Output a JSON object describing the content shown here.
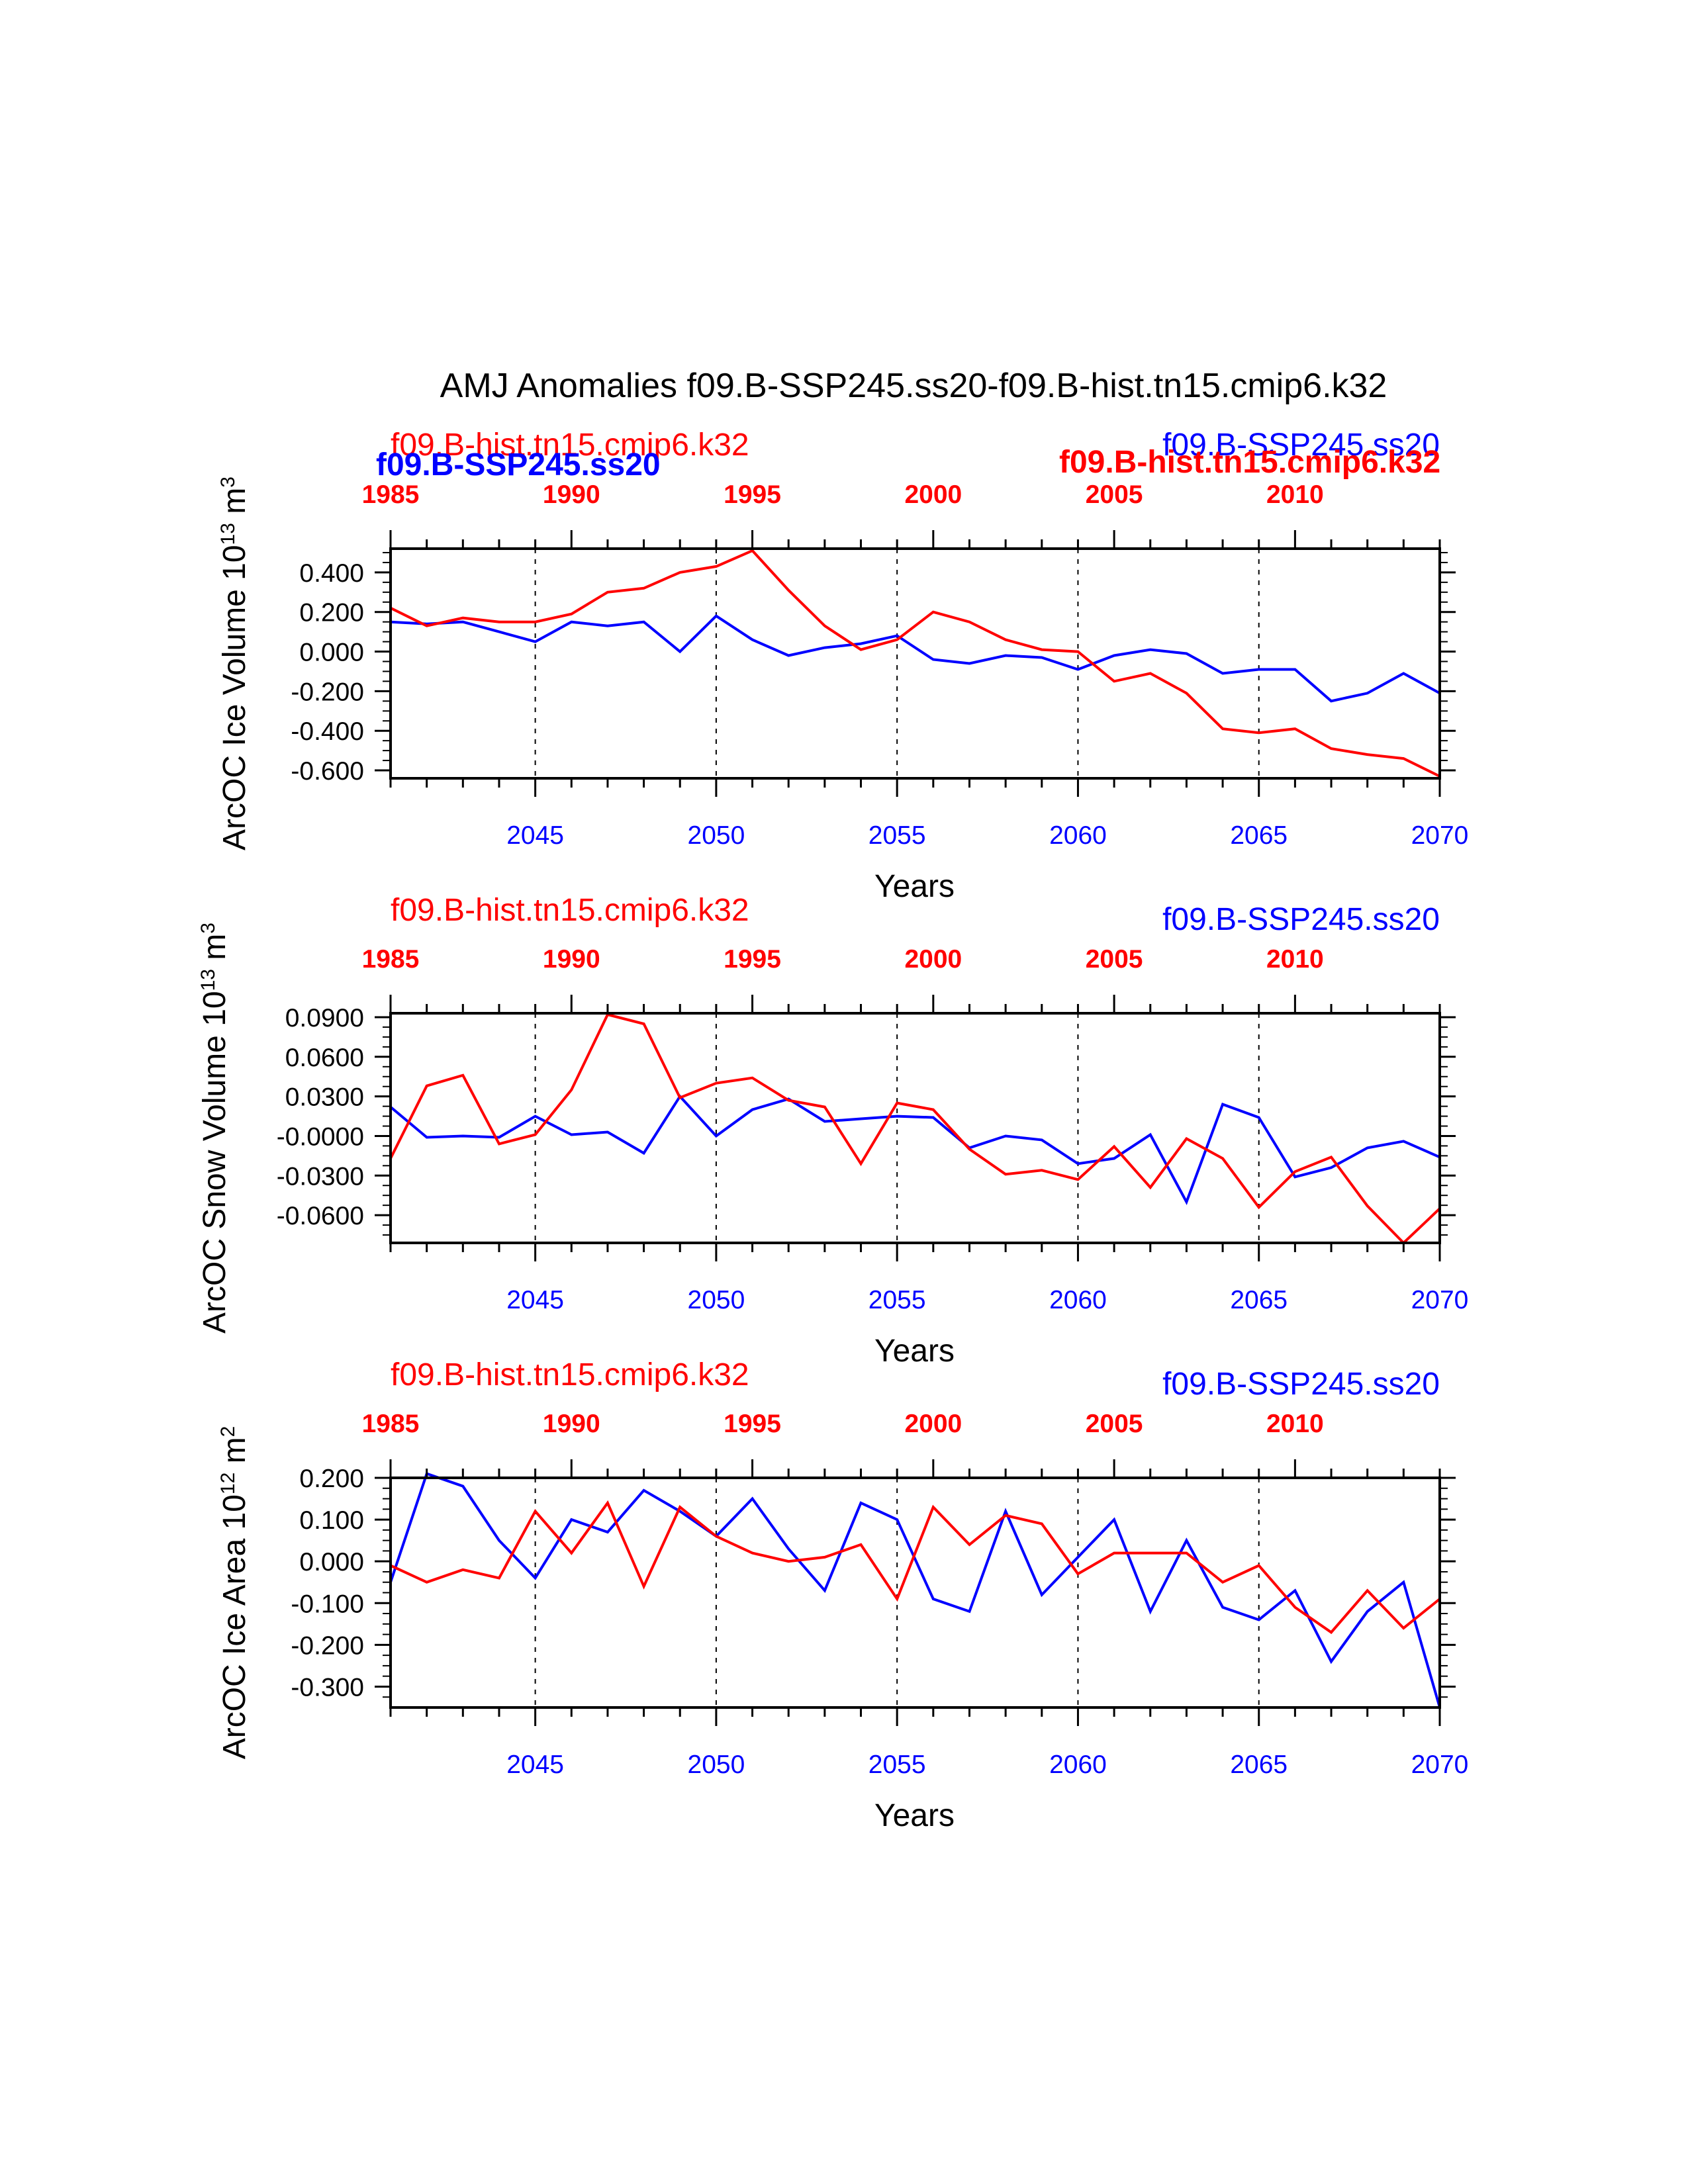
{
  "title": "AMJ Anomalies f09.B-SSP245.ss20-f09.B-hist.tn15.cmip6.k32",
  "colors": {
    "ssp": "#0000ff",
    "hist": "#ff0000",
    "axis": "#000000"
  },
  "chart_data": [
    {
      "type": "line",
      "ylabel": "ArcOC Ice Volume 10",
      "ylabel_exp": "13",
      "ylabel_unit": " m",
      "ylabel_unit_exp": "3",
      "xlabel": "Years",
      "ylim": [
        -0.64,
        0.52
      ],
      "yticks": [
        0.4,
        0.2,
        0.0,
        -0.2,
        -0.4,
        -0.6
      ],
      "ytick_labels": [
        "0.400",
        "0.200",
        "0.000",
        "-0.200",
        "-0.400",
        "-0.600"
      ],
      "bottom_axis": {
        "range": [
          2041,
          2070
        ],
        "ticks": [
          2045,
          2050,
          2055,
          2060,
          2065,
          2070
        ],
        "labels": [
          "2045",
          "2050",
          "2055",
          "2060",
          "2065",
          "2070"
        ]
      },
      "top_axis": {
        "range": [
          1985,
          2014
        ],
        "ticks": [
          1985,
          1990,
          1995,
          2000,
          2005,
          2010
        ],
        "labels": [
          "1985",
          "1990",
          "1995",
          "2000",
          "2005",
          "2010"
        ]
      },
      "red_label": "f09.B-hist.tn15.cmip6.k32",
      "blue_label": "f09.B-SSP245.ss20",
      "extra_labels": [
        "f09.B-SSP245.ss20",
        "f09.B-hist.tn15.cmip6.k32"
      ],
      "series": [
        {
          "name": "f09.B-SSP245.ss20",
          "axis": "bottom",
          "color": "#0000ff",
          "x": [
            2041,
            2042,
            2043,
            2044,
            2045,
            2046,
            2047,
            2048,
            2049,
            2050,
            2051,
            2052,
            2053,
            2054,
            2055,
            2056,
            2057,
            2058,
            2059,
            2060,
            2061,
            2062,
            2063,
            2064,
            2065,
            2066,
            2067,
            2068,
            2069,
            2070
          ],
          "y": [
            0.15,
            0.14,
            0.15,
            0.1,
            0.05,
            0.15,
            0.13,
            0.15,
            0.0,
            0.18,
            0.06,
            -0.02,
            0.02,
            0.04,
            0.08,
            -0.04,
            -0.06,
            -0.02,
            -0.03,
            -0.09,
            -0.02,
            0.01,
            -0.01,
            -0.11,
            -0.09,
            -0.09,
            -0.25,
            -0.21,
            -0.11,
            -0.21
          ]
        },
        {
          "name": "f09.B-hist.tn15.cmip6.k32",
          "axis": "top",
          "color": "#ff0000",
          "x": [
            1985,
            1986,
            1987,
            1988,
            1989,
            1990,
            1991,
            1992,
            1993,
            1994,
            1995,
            1996,
            1997,
            1998,
            1999,
            2000,
            2001,
            2002,
            2003,
            2004,
            2005,
            2006,
            2007,
            2008,
            2009,
            2010,
            2011,
            2012,
            2013,
            2014
          ],
          "y": [
            0.22,
            0.13,
            0.17,
            0.15,
            0.15,
            0.19,
            0.3,
            0.32,
            0.4,
            0.43,
            0.51,
            0.31,
            0.13,
            0.01,
            0.06,
            0.2,
            0.15,
            0.06,
            0.01,
            0.0,
            -0.15,
            -0.11,
            -0.21,
            -0.39,
            -0.41,
            -0.39,
            -0.49,
            -0.52,
            -0.54,
            -0.63
          ]
        }
      ]
    },
    {
      "type": "line",
      "ylabel": "ArcOC Snow Volume 10",
      "ylabel_exp": "13",
      "ylabel_unit": " m",
      "ylabel_unit_exp": "3",
      "xlabel": "Years",
      "ylim": [
        -0.081,
        0.093
      ],
      "yticks": [
        0.09,
        0.06,
        0.03,
        0.0,
        -0.03,
        -0.06
      ],
      "ytick_labels": [
        "0.0900",
        "0.0600",
        "0.0300",
        "-0.0000",
        "-0.0300",
        "-0.0600"
      ],
      "bottom_axis": {
        "range": [
          2041,
          2070
        ],
        "ticks": [
          2045,
          2050,
          2055,
          2060,
          2065,
          2070
        ],
        "labels": [
          "2045",
          "2050",
          "2055",
          "2060",
          "2065",
          "2070"
        ]
      },
      "top_axis": {
        "range": [
          1985,
          2014
        ],
        "ticks": [
          1985,
          1990,
          1995,
          2000,
          2005,
          2010
        ],
        "labels": [
          "1985",
          "1990",
          "1995",
          "2000",
          "2005",
          "2010"
        ]
      },
      "red_label": "f09.B-hist.tn15.cmip6.k32",
      "blue_label": "f09.B-SSP245.ss20",
      "series": [
        {
          "name": "f09.B-SSP245.ss20",
          "axis": "bottom",
          "color": "#0000ff",
          "x": [
            2041,
            2042,
            2043,
            2044,
            2045,
            2046,
            2047,
            2048,
            2049,
            2050,
            2051,
            2052,
            2053,
            2054,
            2055,
            2056,
            2057,
            2058,
            2059,
            2060,
            2061,
            2062,
            2063,
            2064,
            2065,
            2066,
            2067,
            2068,
            2069,
            2070
          ],
          "y": [
            0.022,
            -0.001,
            0.0,
            -0.001,
            0.015,
            0.001,
            0.003,
            -0.013,
            0.03,
            0.0,
            0.02,
            0.028,
            0.011,
            0.013,
            0.015,
            0.014,
            -0.009,
            0.0,
            -0.003,
            -0.021,
            -0.017,
            0.001,
            -0.05,
            0.024,
            0.014,
            -0.031,
            -0.024,
            -0.009,
            -0.004,
            -0.016
          ]
        },
        {
          "name": "f09.B-hist.tn15.cmip6.k32",
          "axis": "top",
          "color": "#ff0000",
          "x": [
            1985,
            1986,
            1987,
            1988,
            1989,
            1990,
            1991,
            1992,
            1993,
            1994,
            1995,
            1996,
            1997,
            1998,
            1999,
            2000,
            2001,
            2002,
            2003,
            2004,
            2005,
            2006,
            2007,
            2008,
            2009,
            2010,
            2011,
            2012,
            2013,
            2014
          ],
          "y": [
            -0.017,
            0.038,
            0.046,
            -0.006,
            0.001,
            0.035,
            0.092,
            0.085,
            0.029,
            0.04,
            0.044,
            0.027,
            0.022,
            -0.021,
            0.025,
            0.02,
            -0.01,
            -0.029,
            -0.026,
            -0.033,
            -0.008,
            -0.039,
            -0.002,
            -0.017,
            -0.054,
            -0.027,
            -0.016,
            -0.053,
            -0.081,
            -0.055
          ]
        }
      ]
    },
    {
      "type": "line",
      "ylabel": "ArcOC Ice Area 10",
      "ylabel_exp": "12",
      "ylabel_unit": " m",
      "ylabel_unit_exp": "2",
      "xlabel": "Years",
      "ylim": [
        -0.35,
        0.2
      ],
      "yticks": [
        0.2,
        0.1,
        0.0,
        -0.1,
        -0.2,
        -0.3
      ],
      "ytick_labels": [
        "0.200",
        "0.100",
        "0.000",
        "-0.100",
        "-0.200",
        "-0.300"
      ],
      "bottom_axis": {
        "range": [
          2041,
          2070
        ],
        "ticks": [
          2045,
          2050,
          2055,
          2060,
          2065,
          2070
        ],
        "labels": [
          "2045",
          "2050",
          "2055",
          "2060",
          "2065",
          "2070"
        ]
      },
      "top_axis": {
        "range": [
          1985,
          2014
        ],
        "ticks": [
          1985,
          1990,
          1995,
          2000,
          2005,
          2010
        ],
        "labels": [
          "1985",
          "1990",
          "1995",
          "2000",
          "2005",
          "2010"
        ]
      },
      "red_label": "f09.B-hist.tn15.cmip6.k32",
      "blue_label": "f09.B-SSP245.ss20",
      "series": [
        {
          "name": "f09.B-SSP245.ss20",
          "axis": "bottom",
          "color": "#0000ff",
          "x": [
            2041,
            2042,
            2043,
            2044,
            2045,
            2046,
            2047,
            2048,
            2049,
            2050,
            2051,
            2052,
            2053,
            2054,
            2055,
            2056,
            2057,
            2058,
            2059,
            2060,
            2061,
            2062,
            2063,
            2064,
            2065,
            2066,
            2067,
            2068,
            2069,
            2070
          ],
          "y": [
            -0.05,
            0.21,
            0.18,
            0.05,
            -0.04,
            0.1,
            0.07,
            0.17,
            0.12,
            0.06,
            0.15,
            0.03,
            -0.07,
            0.14,
            0.1,
            -0.09,
            -0.12,
            0.12,
            -0.08,
            0.01,
            0.1,
            -0.12,
            0.05,
            -0.11,
            -0.14,
            -0.07,
            -0.24,
            -0.12,
            -0.05,
            -0.35
          ]
        },
        {
          "name": "f09.B-hist.tn15.cmip6.k32",
          "axis": "top",
          "color": "#ff0000",
          "x": [
            1985,
            1986,
            1987,
            1988,
            1989,
            1990,
            1991,
            1992,
            1993,
            1994,
            1995,
            1996,
            1997,
            1998,
            1999,
            2000,
            2001,
            2002,
            2003,
            2004,
            2005,
            2006,
            2007,
            2008,
            2009,
            2010,
            2011,
            2012,
            2013,
            2014
          ],
          "y": [
            -0.01,
            -0.05,
            -0.02,
            -0.04,
            0.12,
            0.02,
            0.14,
            -0.06,
            0.13,
            0.06,
            0.02,
            0.0,
            0.01,
            0.04,
            -0.09,
            0.13,
            0.04,
            0.11,
            0.09,
            -0.03,
            0.02,
            0.02,
            0.02,
            -0.05,
            -0.01,
            -0.11,
            -0.17,
            -0.07,
            -0.16,
            -0.09
          ]
        }
      ]
    }
  ]
}
